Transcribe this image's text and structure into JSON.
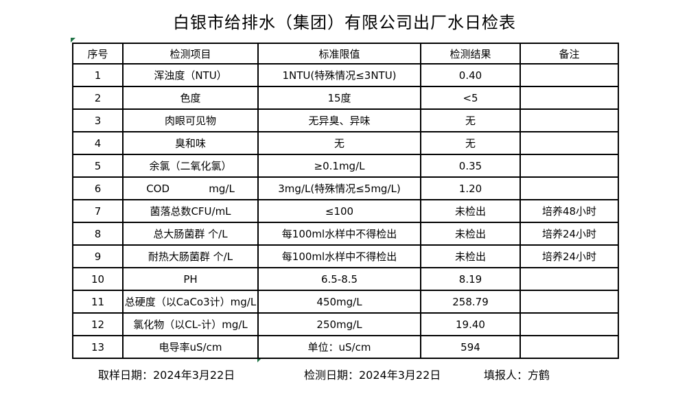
{
  "title": "白银市给排水（集团）有限公司出厂水日检表",
  "table": {
    "headers": {
      "no": "序号",
      "item": "检测项目",
      "standard": "标准限值",
      "result": "检测结果",
      "remark": "备注"
    },
    "rows": [
      {
        "no": "1",
        "item": "浑浊度（NTU）",
        "standard": "1NTU(特殊情况≤3NTU)",
        "result": "0.40",
        "remark": ""
      },
      {
        "no": "2",
        "item": "色度",
        "standard": "15度",
        "result": "<5",
        "remark": ""
      },
      {
        "no": "3",
        "item": "肉眼可见物",
        "standard": "无异臭、异味",
        "result": "无",
        "remark": ""
      },
      {
        "no": "4",
        "item": "臭和味",
        "standard": "无",
        "result": "无",
        "remark": ""
      },
      {
        "no": "5",
        "item": "余氯（二氧化氯）",
        "standard": "≥0.1mg/L",
        "result": "0.35",
        "remark": ""
      },
      {
        "no": "6",
        "item": "COD            mg/L",
        "standard": "3mg/L(特殊情况≤5mg/L)",
        "result": "1.20",
        "remark": ""
      },
      {
        "no": "7",
        "item": "菌落总数CFU/mL",
        "standard": "≤100",
        "result": "未检出",
        "remark": "培养48小时"
      },
      {
        "no": "8",
        "item": "总大肠菌群 个/L",
        "standard": "每100ml水样中不得检出",
        "result": "未检出",
        "remark": "培养24小时"
      },
      {
        "no": "9",
        "item": "耐热大肠菌群 个/L",
        "standard": "每100ml水样中不得检出",
        "result": "未检出",
        "remark": "培养24小时"
      },
      {
        "no": "10",
        "item": "PH",
        "standard": "6.5-8.5",
        "result": "8.19",
        "remark": ""
      },
      {
        "no": "11",
        "item": "总硬度（以CaCo3计）mg/L",
        "standard": "450mg/L",
        "result": "258.79",
        "remark": ""
      },
      {
        "no": "12",
        "item": "氯化物（以CL-计）mg/L",
        "standard": "250mg/L",
        "result": "19.40",
        "remark": ""
      },
      {
        "no": "13",
        "item": "电导率uS/cm",
        "standard": "单位：uS/cm",
        "result": "594",
        "remark": ""
      }
    ]
  },
  "footer": {
    "sample_date": "取样日期：2024年3月22日",
    "test_date": "检测日期：2024年3月22日",
    "reporter": "填报人：方鹤"
  },
  "colors": {
    "border": "#000000",
    "marker_green": "#217346",
    "background": "#ffffff"
  }
}
